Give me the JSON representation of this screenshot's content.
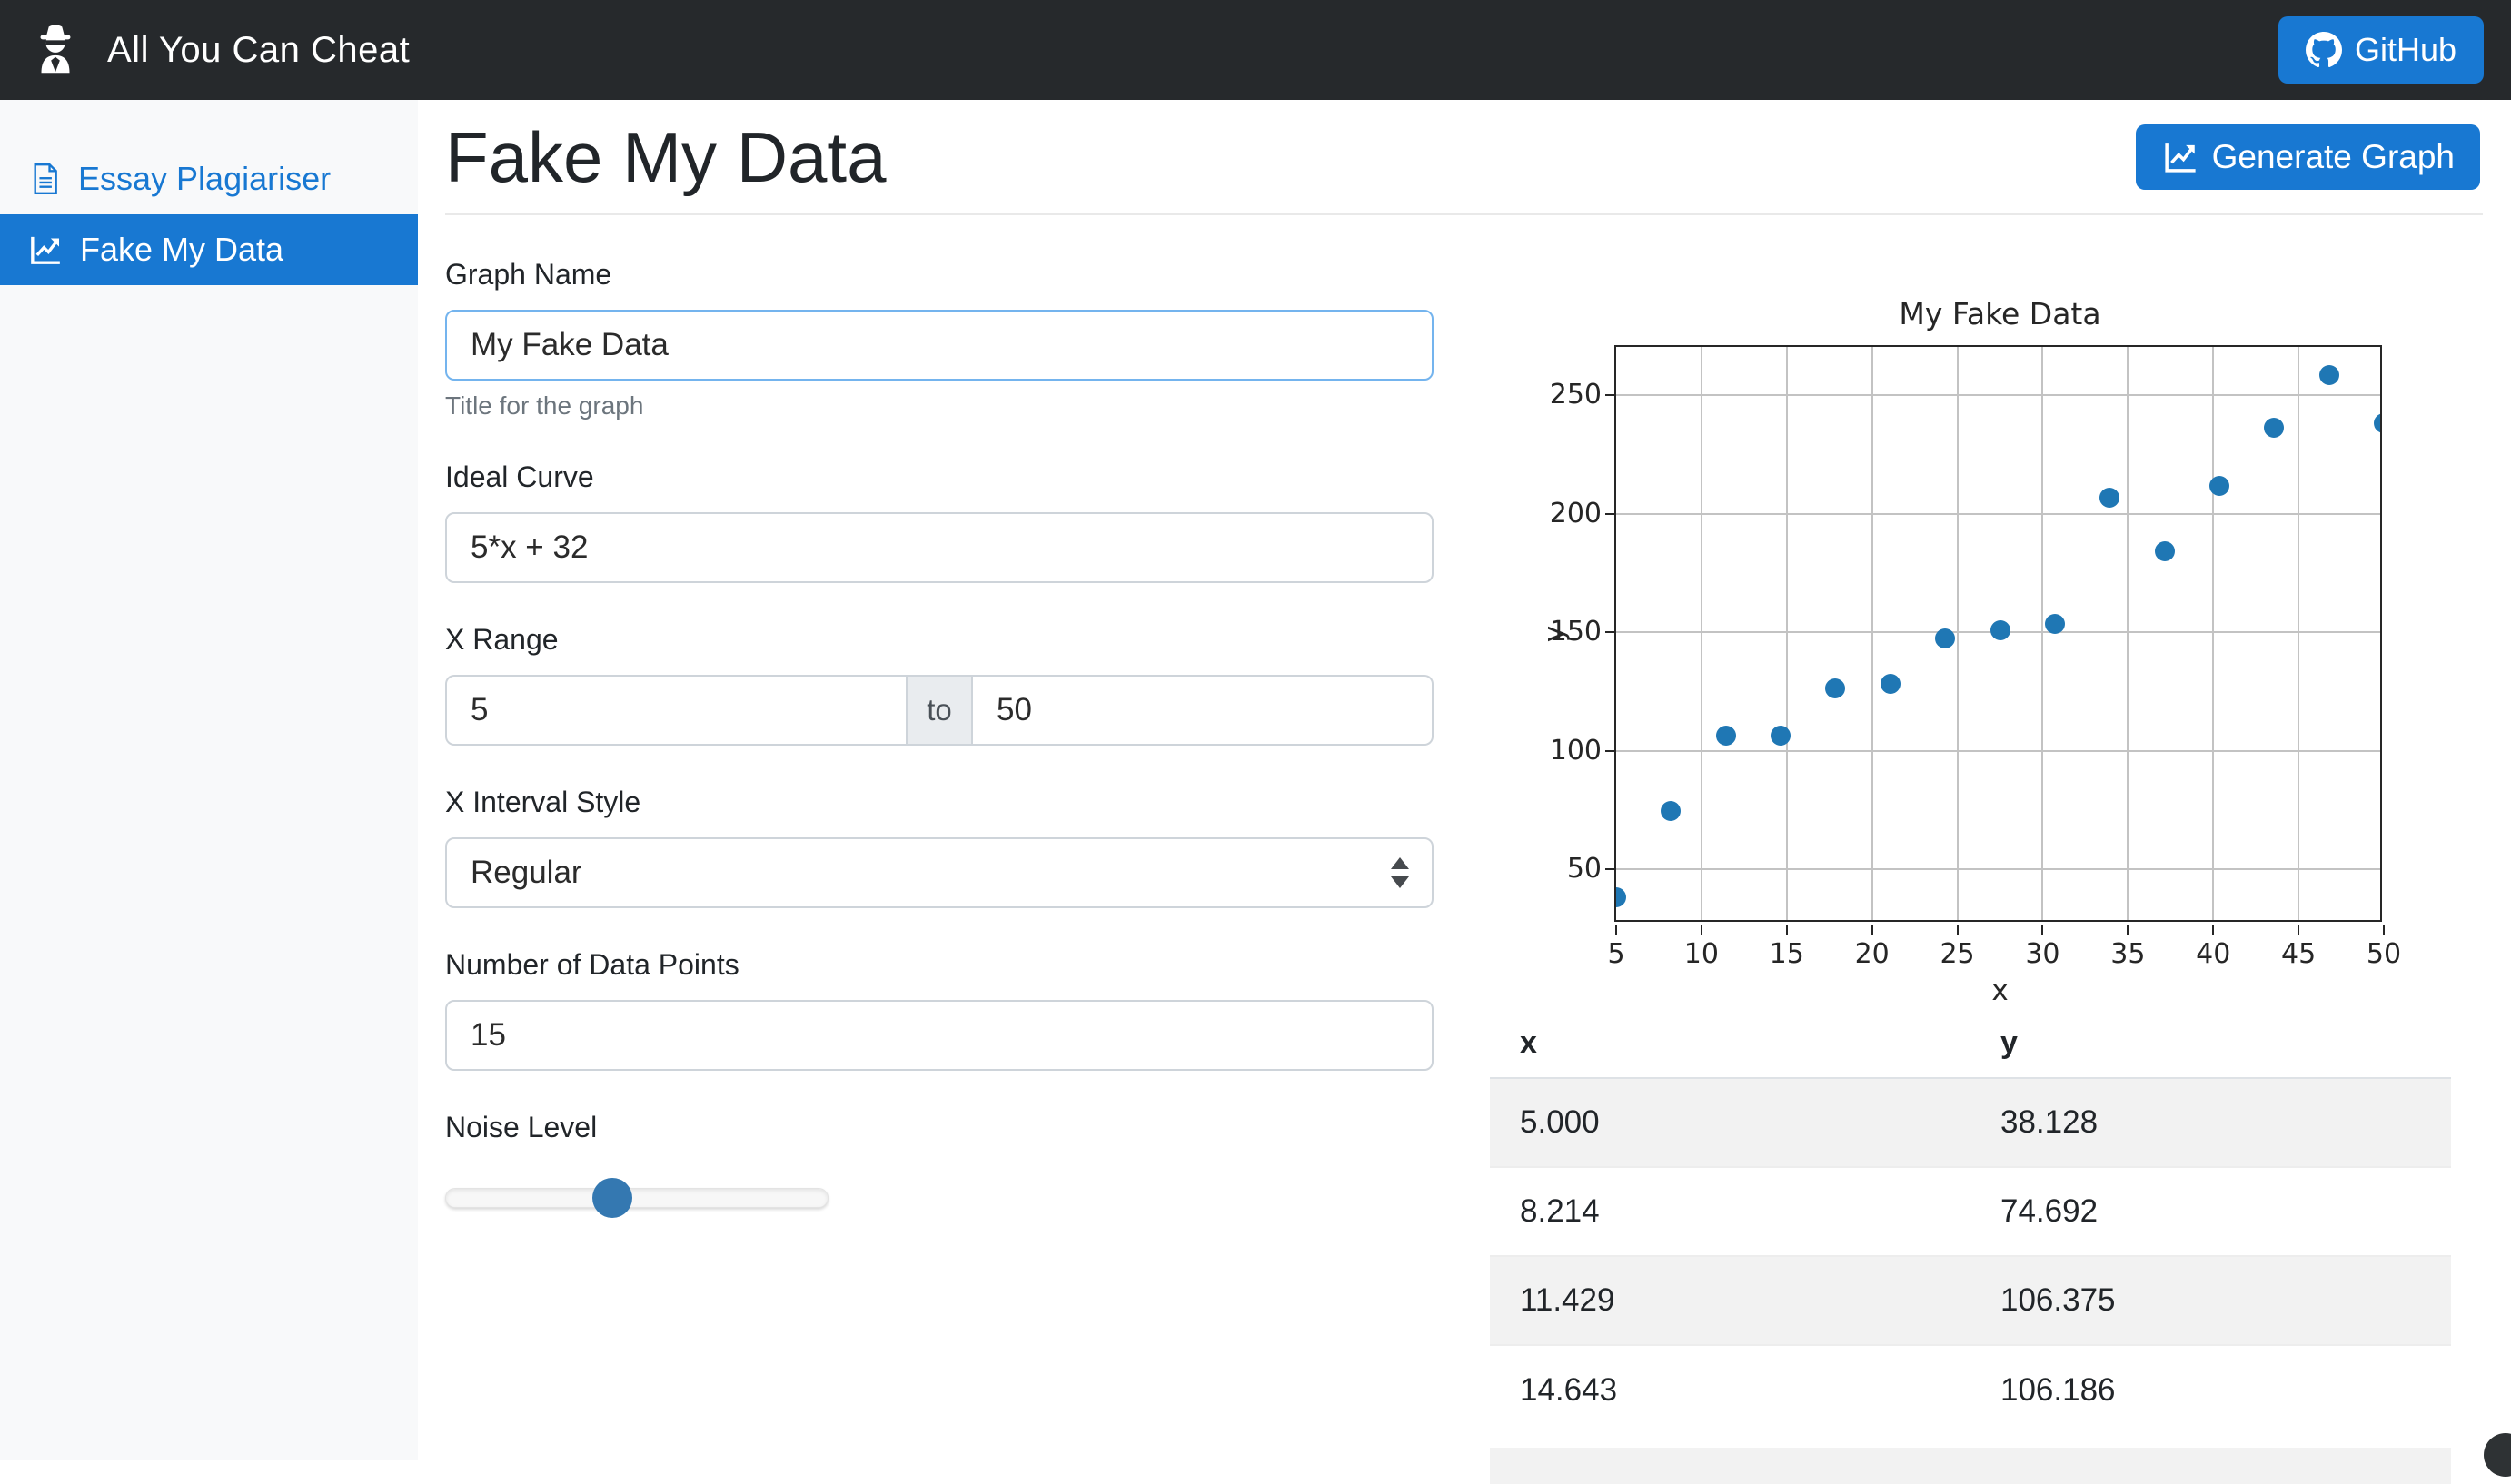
{
  "navbar": {
    "brand": "All You Can Cheat",
    "github_label": "GitHub"
  },
  "sidebar": {
    "items": [
      {
        "label": "Essay Plagiariser",
        "icon": "document-icon",
        "active": false
      },
      {
        "label": "Fake My Data",
        "icon": "chart-line-icon",
        "active": true
      }
    ]
  },
  "page": {
    "title": "Fake My Data",
    "generate_button_label": "Generate Graph"
  },
  "form": {
    "graph_name": {
      "label": "Graph Name",
      "value": "My Fake Data",
      "help": "Title for the graph"
    },
    "ideal_curve": {
      "label": "Ideal Curve",
      "value": "5*x + 32"
    },
    "x_range": {
      "label": "X Range",
      "from": "5",
      "separator": "to",
      "to": "50"
    },
    "x_interval_style": {
      "label": "X Interval Style",
      "value": "Regular"
    },
    "num_points": {
      "label": "Number of Data Points",
      "value": "15"
    },
    "noise_level": {
      "label": "Noise Level",
      "percent": 43.6
    }
  },
  "chart_data": {
    "type": "scatter",
    "title": "My Fake Data",
    "xlabel": "x",
    "ylabel": "y",
    "xlim": [
      5,
      50
    ],
    "ylim": [
      27,
      270.5
    ],
    "x_ticks": [
      5,
      10,
      15,
      20,
      25,
      30,
      35,
      40,
      45,
      50
    ],
    "y_ticks": [
      50,
      100,
      150,
      200,
      250
    ],
    "grid": true,
    "legend": "none",
    "point_color": "#1f77b4",
    "points": [
      [
        5.0,
        38.128
      ],
      [
        8.214,
        74.692
      ],
      [
        11.429,
        106.375
      ],
      [
        14.643,
        106.186
      ],
      [
        17.857,
        126.3
      ],
      [
        21.071,
        128.4
      ],
      [
        24.286,
        147.4
      ],
      [
        27.5,
        150.8
      ],
      [
        30.714,
        153.5
      ],
      [
        33.929,
        206.9
      ],
      [
        37.143,
        184.4
      ],
      [
        40.357,
        211.7
      ],
      [
        43.571,
        236.2
      ],
      [
        46.786,
        258.8
      ],
      [
        50.0,
        238.4
      ]
    ]
  },
  "table": {
    "columns": [
      "x",
      "y"
    ],
    "rows": [
      [
        "5.000",
        "38.128"
      ],
      [
        "8.214",
        "74.692"
      ],
      [
        "11.429",
        "106.375"
      ],
      [
        "14.643",
        "106.186"
      ]
    ]
  },
  "colors": {
    "accent": "#1878d2",
    "navbar_bg": "#26292c",
    "point": "#1f77b4",
    "stripe": "#f2f2f2",
    "focus_border": "#74b4ee",
    "slider_thumb": "#3478b1"
  }
}
